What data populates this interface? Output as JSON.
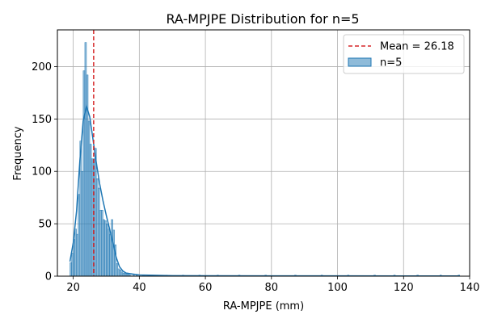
{
  "chart_data": {
    "type": "histogram",
    "title": "RA-MPJPE Distribution for n=5",
    "xlabel": "RA-MPJPE (mm)",
    "ylabel": "Frequency",
    "xlim": [
      15.2,
      140.0
    ],
    "ylim": [
      0,
      235
    ],
    "xticks": [
      20,
      40,
      60,
      80,
      100,
      120,
      140
    ],
    "yticks": [
      0,
      50,
      100,
      150,
      200
    ],
    "grid": true,
    "legend_position": "top-right",
    "bin_width": 0.5,
    "bins": [
      [
        19.0,
        13
      ],
      [
        19.5,
        22
      ],
      [
        20.0,
        35
      ],
      [
        20.5,
        45
      ],
      [
        21.0,
        40
      ],
      [
        21.5,
        78
      ],
      [
        22.0,
        129
      ],
      [
        22.5,
        100
      ],
      [
        23.0,
        196
      ],
      [
        23.5,
        223
      ],
      [
        24.0,
        192
      ],
      [
        24.5,
        148
      ],
      [
        25.0,
        126
      ],
      [
        25.5,
        112
      ],
      [
        26.0,
        112
      ],
      [
        26.5,
        122
      ],
      [
        27.0,
        93
      ],
      [
        27.5,
        84
      ],
      [
        28.0,
        63
      ],
      [
        28.5,
        63
      ],
      [
        29.0,
        54
      ],
      [
        29.5,
        53
      ],
      [
        30.0,
        50
      ],
      [
        30.5,
        45
      ],
      [
        31.0,
        40
      ],
      [
        31.5,
        54
      ],
      [
        32.0,
        44
      ],
      [
        32.5,
        30
      ],
      [
        33.0,
        12
      ],
      [
        33.5,
        7
      ],
      [
        34.0,
        6
      ],
      [
        34.5,
        4
      ],
      [
        35.0,
        3
      ],
      [
        35.5,
        3
      ],
      [
        36.0,
        2
      ],
      [
        36.5,
        2
      ],
      [
        37.0,
        1
      ],
      [
        38.0,
        1
      ],
      [
        39.0,
        1
      ],
      [
        41.0,
        1
      ],
      [
        44.0,
        1
      ],
      [
        48.0,
        1
      ],
      [
        53.0,
        1
      ],
      [
        58.0,
        1
      ],
      [
        63.5,
        1
      ],
      [
        70.0,
        1
      ],
      [
        78.0,
        1
      ],
      [
        87.0,
        1
      ],
      [
        95.0,
        1
      ],
      [
        103.0,
        1
      ],
      [
        111.0,
        1
      ],
      [
        117.0,
        1
      ],
      [
        124.0,
        1
      ],
      [
        131.0,
        1
      ],
      [
        136.5,
        1
      ]
    ],
    "kde": {
      "name": "n=5",
      "color": "#1f77b4",
      "points": [
        [
          19.0,
          14
        ],
        [
          20.0,
          32
        ],
        [
          21.0,
          62
        ],
        [
          22.0,
          110
        ],
        [
          23.0,
          148
        ],
        [
          24.0,
          162
        ],
        [
          25.0,
          152
        ],
        [
          26.0,
          130
        ],
        [
          27.0,
          108
        ],
        [
          28.0,
          88
        ],
        [
          29.0,
          72
        ],
        [
          30.0,
          58
        ],
        [
          31.0,
          45
        ],
        [
          32.0,
          32
        ],
        [
          33.0,
          18
        ],
        [
          34.0,
          9
        ],
        [
          35.0,
          5
        ],
        [
          36.0,
          3
        ],
        [
          38.0,
          2
        ],
        [
          40.0,
          1.2
        ],
        [
          50.0,
          0.5
        ],
        [
          60.0,
          0.4
        ],
        [
          80.0,
          0.3
        ],
        [
          100.0,
          0.3
        ],
        [
          120.0,
          0.2
        ],
        [
          137.0,
          0.2
        ]
      ]
    },
    "mean": {
      "value": 26.18,
      "label": "Mean = 26.18",
      "color": "#d62728"
    },
    "legend": [
      {
        "label": "Mean = 26.18",
        "style": "dashed-line",
        "color": "#d62728"
      },
      {
        "label": "n=5",
        "style": "patch",
        "color": "#1f77b4"
      }
    ]
  }
}
